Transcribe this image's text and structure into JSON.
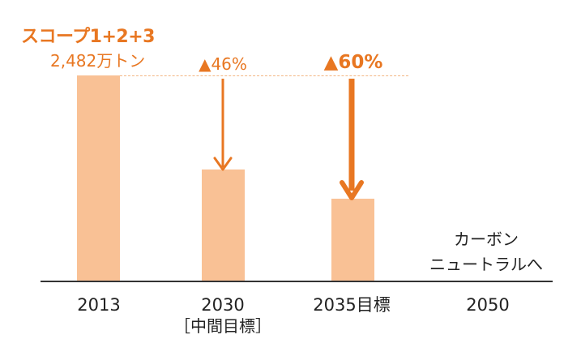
{
  "chart_data": {
    "type": "bar",
    "categories": [
      "2013",
      "2030",
      "2035目標",
      "2050"
    ],
    "category_sublabels": [
      "",
      "［中間目標］",
      "",
      ""
    ],
    "values": [
      2482,
      1340,
      993,
      0
    ],
    "value_unit": "万トン",
    "title": "スコープ1+2+3",
    "base_value_label": "2,482万トン",
    "reductions": [
      {
        "category": "2030",
        "label": "▲46%",
        "percent": 46
      },
      {
        "category": "2035目標",
        "label": "▲60%",
        "percent": 60
      }
    ],
    "end_label_line1": "カーボン",
    "end_label_line2": "ニュートラルへ",
    "ylim": [
      0,
      2482
    ],
    "colors": {
      "bar": "#F9C195",
      "accent": "#E87722",
      "reference_line": "#F3B784",
      "axis": "#333333"
    },
    "grid": false
  }
}
